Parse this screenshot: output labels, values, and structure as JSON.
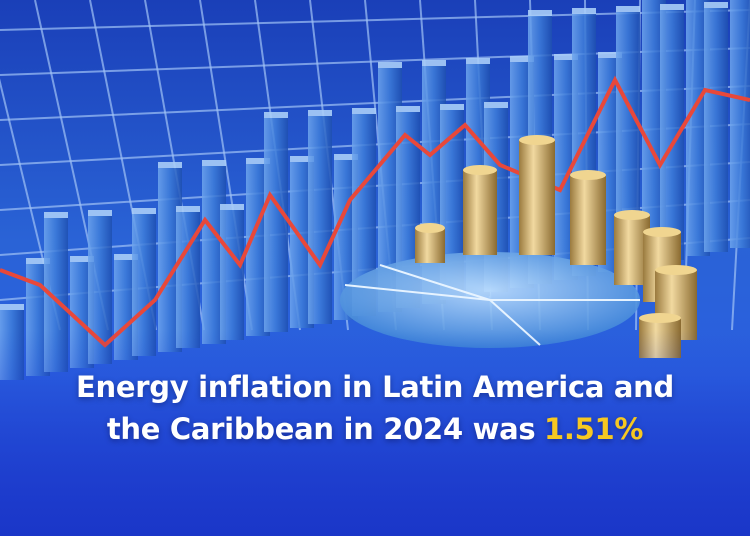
{
  "headline": {
    "line1": "Energy inflation in Latin America and",
    "line2": "the Caribbean in 2024 was",
    "highlight": "1.51%"
  }
}
